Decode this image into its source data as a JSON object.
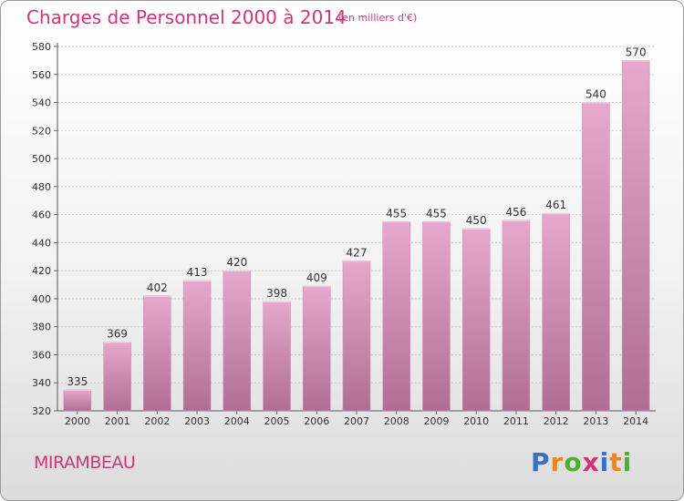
{
  "header": {
    "title": "Charges de Personnel 2000 à 2014",
    "subtitle": "(en milliers d'€)"
  },
  "footer": {
    "commune": "MIRAMBEAU",
    "logo": [
      "P",
      "r",
      "o",
      "x",
      "i",
      "t",
      "i"
    ]
  },
  "colors": {
    "bar_top": "#e6a8cc",
    "bar_bottom": "#b06e94",
    "accent": "#d0347a",
    "logo": [
      "#3a6fc4",
      "#f0841c",
      "#4caf32",
      "#d0347a",
      "#3a6fc4",
      "#f0841c",
      "#4caf32"
    ]
  },
  "chart_data": {
    "type": "bar",
    "title": "Charges de Personnel 2000 à 2014",
    "xlabel": "",
    "ylabel": "(en milliers d'€)",
    "categories": [
      "2000",
      "2001",
      "2002",
      "2003",
      "2004",
      "2005",
      "2006",
      "2007",
      "2008",
      "2009",
      "2010",
      "2011",
      "2012",
      "2013",
      "2014"
    ],
    "values": [
      335,
      369,
      402,
      413,
      420,
      398,
      409,
      427,
      455,
      455,
      450,
      456,
      461,
      540,
      570
    ],
    "ylim": [
      320,
      580
    ],
    "yticks": [
      320,
      340,
      360,
      380,
      400,
      420,
      440,
      460,
      480,
      500,
      520,
      540,
      560,
      580
    ],
    "grid": true
  }
}
